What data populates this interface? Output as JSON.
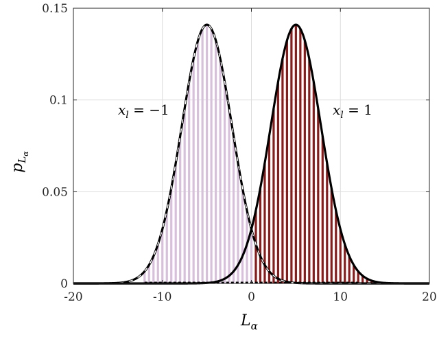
{
  "chart_data": {
    "type": "bar",
    "title": "",
    "xlabel": "L",
    "xlabel_sub": "α",
    "ylabel": "p",
    "ylabel_sub1": "L",
    "ylabel_sub2": "α",
    "xlim": [
      -20,
      20
    ],
    "ylim": [
      0,
      0.15
    ],
    "grid": true,
    "xticks": [
      -20,
      -10,
      0,
      10,
      20
    ],
    "xtick_labels": [
      "-20",
      "-10",
      "0",
      "10",
      "20"
    ],
    "yticks": [
      0,
      0.05,
      0.1,
      0.15
    ],
    "ytick_labels": [
      "0",
      "0.05",
      "0.1",
      "0.15"
    ],
    "bar_spacing": 0.5,
    "series": [
      {
        "name": "",
        "label_var": "x",
        "label_sub": "l",
        "label_value": " = −1",
        "color": "#d8bfdc",
        "mean": -5,
        "std": 2.83,
        "peak": 0.141,
        "support": [
          -12,
          3
        ],
        "curve_color": "#000000",
        "curve_style": "dashed-over-bars"
      },
      {
        "name": "",
        "label_var": "x",
        "label_sub": "l",
        "label_value": " = 1",
        "color": "#8b1a1a",
        "mean": 5,
        "std": 2.83,
        "peak": 0.141,
        "support": [
          0.5,
          13.5
        ],
        "curve_color": "#000000",
        "curve_style": "solid"
      }
    ],
    "curve_range": [
      -20,
      20
    ]
  }
}
